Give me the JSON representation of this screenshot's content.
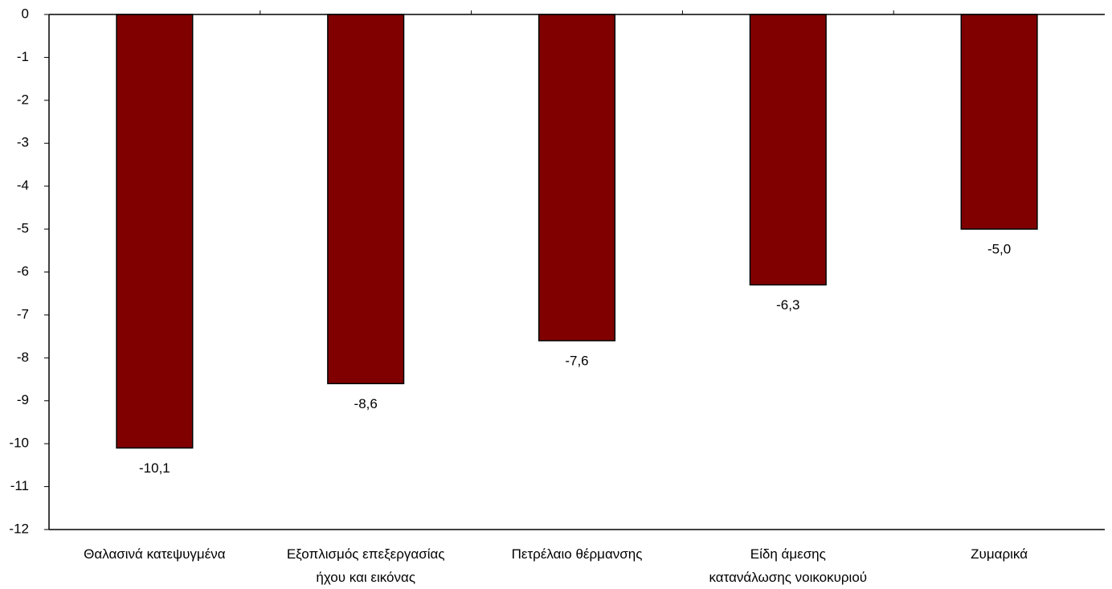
{
  "chart_data": {
    "type": "bar",
    "categories": [
      "Θαλασινά κατεψυγμένα",
      "Εξοπλισμός επεξεργασίας\nήχου και εικόνας",
      "Πετρέλαιο θέρμανσης",
      "Είδη άμεσης\nκατανάλωσης νοικοκυριού",
      "Ζυμαρικά"
    ],
    "values": [
      -10.1,
      -8.6,
      -7.6,
      -6.3,
      -5.0
    ],
    "value_labels": [
      "-10,1",
      "-8,6",
      "-7,6",
      "-6,3",
      "-5,0"
    ],
    "color": "#800000",
    "ylim": [
      -12,
      0
    ],
    "yticks": [
      0,
      -1,
      -2,
      -3,
      -4,
      -5,
      -6,
      -7,
      -8,
      -9,
      -10,
      -11,
      -12
    ]
  }
}
